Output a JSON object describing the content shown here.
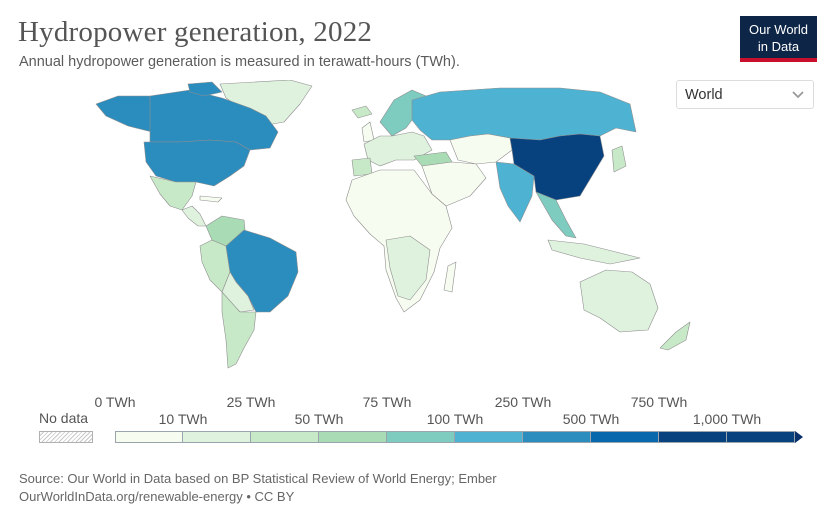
{
  "header": {
    "title": "Hydropower generation, 2022",
    "subtitle": "Annual hydropower generation is measured in terawatt-hours (TWh)."
  },
  "logo": {
    "line1": "Our World",
    "line2": "in Data"
  },
  "entity_selector": {
    "selected": "World",
    "icon": "chevron-down-icon"
  },
  "legend": {
    "no_data_label": "No data",
    "bins": [
      {
        "color": "#f7fcf0"
      },
      {
        "color": "#dff2de"
      },
      {
        "color": "#c8e9c8"
      },
      {
        "color": "#a9dcb5"
      },
      {
        "color": "#7ecbc0"
      },
      {
        "color": "#4eb3d3"
      },
      {
        "color": "#2b8cbe"
      },
      {
        "color": "#0868ac"
      },
      {
        "color": "#08427e"
      }
    ],
    "upper_labels": [
      "0 TWh",
      "25 TWh",
      "75 TWh",
      "250 TWh",
      "750 TWh"
    ],
    "lower_labels": [
      "10 TWh",
      "50 TWh",
      "100 TWh",
      "500 TWh",
      "1,000 TWh"
    ]
  },
  "map_colors": {
    "no_data": "#e6e6e6",
    "border": "#9a9a9a",
    "ocean": "#ffffff"
  },
  "regions": [
    {
      "name": "China",
      "color": "#08427e"
    },
    {
      "name": "Canada",
      "color": "#2b8cbe"
    },
    {
      "name": "Brazil",
      "color": "#2b8cbe"
    },
    {
      "name": "United States",
      "color": "#2b8cbe"
    },
    {
      "name": "Russia",
      "color": "#4eb3d3"
    },
    {
      "name": "India",
      "color": "#4eb3d3"
    },
    {
      "name": "Norway",
      "color": "#7ecbc0"
    },
    {
      "name": "Vietnam",
      "color": "#7ecbc0"
    }
  ],
  "source": {
    "line1": "Source: Our World in Data based on BP Statistical Review of World Energy; Ember",
    "line2": "OurWorldInData.org/renewable-energy • CC BY"
  }
}
